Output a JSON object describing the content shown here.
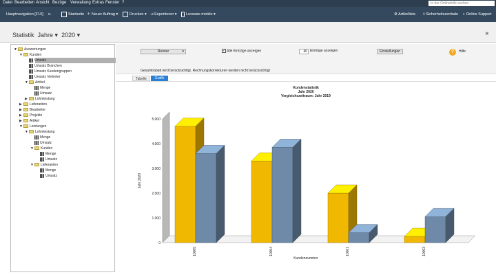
{
  "menu": [
    "Datei",
    "Bearbeiten",
    "Ansicht",
    "Bezüge",
    "Verwaltung",
    "Extras",
    "Fenster",
    "?"
  ],
  "search": {
    "placeholder": "In der Onlinehilfe suchen"
  },
  "toolbar": {
    "hauptnavigation": "Hauptnavigation [F10]",
    "startseite": "Startseite",
    "neuer_auftrag": "Neuer Auftrag",
    "drucken": "Drucken",
    "exportieren": "Exportieren",
    "lexware_mobile": "Lexware mobile",
    "artikelliste": "Artikelliste",
    "sicherheitszentrale": "Sicherheitszentrale",
    "online_support": "Online Support"
  },
  "title": {
    "label": "Statistik",
    "jahre": "Jahre",
    "year": "2020",
    "close": "×"
  },
  "tree": [
    {
      "label": "Auswertungen",
      "indent": 0,
      "kind": "folder",
      "tw": "▼"
    },
    {
      "label": "Kunden",
      "indent": 1,
      "kind": "folder",
      "tw": "▼"
    },
    {
      "label": "Umsatz",
      "indent": 2,
      "kind": "leaf",
      "tw": ""
    },
    {
      "label": "Umsatz Branchen",
      "indent": 2,
      "kind": "leaf",
      "tw": ""
    },
    {
      "label": "Umsatz Kundengruppen",
      "indent": 2,
      "kind": "leaf",
      "tw": ""
    },
    {
      "label": "Umsatz Vertreter",
      "indent": 2,
      "kind": "leaf",
      "tw": ""
    },
    {
      "label": "Artikel",
      "indent": 2,
      "kind": "folder",
      "tw": "▼"
    },
    {
      "label": "Menge",
      "indent": 3,
      "kind": "leaf",
      "tw": ""
    },
    {
      "label": "Umsatz",
      "indent": 3,
      "kind": "leaf",
      "tw": ""
    },
    {
      "label": "Lohnleistung",
      "indent": 2,
      "kind": "folder",
      "tw": "▶"
    },
    {
      "label": "Lieferanten",
      "indent": 1,
      "kind": "folder",
      "tw": "▶"
    },
    {
      "label": "Bearbeiter",
      "indent": 1,
      "kind": "folder",
      "tw": "▶"
    },
    {
      "label": "Projekte",
      "indent": 1,
      "kind": "folder",
      "tw": "▶"
    },
    {
      "label": "Artikel",
      "indent": 1,
      "kind": "folder",
      "tw": "▶"
    },
    {
      "label": "Leistungen",
      "indent": 1,
      "kind": "folder",
      "tw": "▼"
    },
    {
      "label": "Lohnleistung",
      "indent": 2,
      "kind": "folder",
      "tw": "▼"
    },
    {
      "label": "Menge",
      "indent": 3,
      "kind": "leaf",
      "tw": ""
    },
    {
      "label": "Umsatz",
      "indent": 3,
      "kind": "leaf",
      "tw": ""
    },
    {
      "label": "Kunden",
      "indent": 3,
      "kind": "folder",
      "tw": "▼"
    },
    {
      "label": "Menge",
      "indent": 4,
      "kind": "leaf",
      "tw": ""
    },
    {
      "label": "Umsatz",
      "indent": 4,
      "kind": "leaf",
      "tw": ""
    },
    {
      "label": "Lieferanten",
      "indent": 3,
      "kind": "folder",
      "tw": "▼"
    },
    {
      "label": "Menge",
      "indent": 4,
      "kind": "leaf",
      "tw": ""
    },
    {
      "label": "Umsatz",
      "indent": 4,
      "kind": "leaf",
      "tw": ""
    }
  ],
  "options": {
    "renner": "Renner",
    "alle_eintraege": "Alle Einträge anzeigen",
    "eintraege_count": "40",
    "eintraege_anzeigen": "Einträge anzeigen",
    "einstellungen": "Einstellungen",
    "hilfe": "Hilfe",
    "help_glyph": "?",
    "note": "Gesamtrabatt wird berücksichtigt. Rechnungskorrekturen werden nicht berücksichtigt"
  },
  "tabs": {
    "tabelle": "Tabelle",
    "grafik": "Grafik"
  },
  "colors": {
    "series1": "#f0b800",
    "series2": "#6f8aa8",
    "accent": "#2b80d4",
    "toolbar": "#34495e",
    "menubar": "#2c3e50"
  },
  "chart_data": {
    "type": "bar",
    "title": "Kundenstatistik",
    "subtitle1": "Jahr 2020",
    "subtitle2": "Vergleichszeitraum: Jahr 2019",
    "xlabel": "Kundennummer",
    "ylabel": "Jahr 2020",
    "categories": [
      "10005",
      "10004",
      "10001",
      "10003"
    ],
    "series": [
      {
        "values": [
          4700,
          3300,
          2000,
          250
        ]
      },
      {
        "values": [
          3600,
          3850,
          400,
          1050
        ]
      }
    ],
    "ylim": [
      0,
      5000
    ],
    "yticks": [
      "0",
      "1.000",
      "2.000",
      "3.000",
      "4.000",
      "5.000"
    ],
    "grid": false,
    "style": "3d"
  }
}
